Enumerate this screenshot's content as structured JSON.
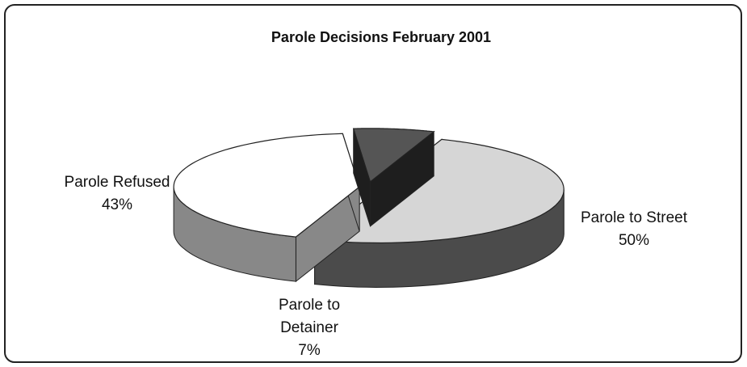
{
  "chart_data": {
    "type": "pie3d",
    "title": "Parole Decisions February 2001",
    "categories": [
      "Parole to Street",
      "Parole Refused",
      "Parole to Detainer"
    ],
    "values": [
      50,
      43,
      7
    ],
    "value_labels": [
      "50%",
      "43%",
      "7%"
    ],
    "colors": [
      "#d6d6d6",
      "#ffffff",
      "#555555"
    ]
  }
}
